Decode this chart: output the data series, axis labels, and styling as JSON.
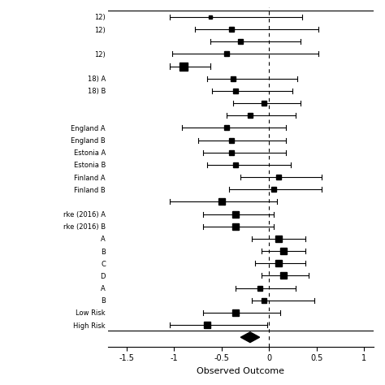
{
  "studies": [
    {
      "label": "12)",
      "mean": -0.62,
      "ci_low": -1.05,
      "ci_high": 0.35,
      "size": 3.5
    },
    {
      "label": "12)",
      "mean": -0.4,
      "ci_low": -0.78,
      "ci_high": 0.52,
      "size": 4.5
    },
    {
      "label": "",
      "mean": -0.3,
      "ci_low": -0.62,
      "ci_high": 0.33,
      "size": 4.5
    },
    {
      "label": "12)",
      "mean": -0.45,
      "ci_low": -1.02,
      "ci_high": 0.52,
      "size": 4.5
    },
    {
      "label": "",
      "mean": -0.9,
      "ci_low": -1.05,
      "ci_high": -0.62,
      "size": 8.5
    },
    {
      "label": "18) A",
      "mean": -0.38,
      "ci_low": -0.65,
      "ci_high": 0.3,
      "size": 5.5
    },
    {
      "label": "18) B",
      "mean": -0.35,
      "ci_low": -0.6,
      "ci_high": 0.25,
      "size": 5.5
    },
    {
      "label": "",
      "mean": -0.05,
      "ci_low": -0.38,
      "ci_high": 0.33,
      "size": 5.5
    },
    {
      "label": "",
      "mean": -0.2,
      "ci_low": -0.45,
      "ci_high": 0.28,
      "size": 5.0
    },
    {
      "label": "England A",
      "mean": -0.45,
      "ci_low": -0.92,
      "ci_high": 0.18,
      "size": 5.5
    },
    {
      "label": "England B",
      "mean": -0.4,
      "ci_low": -0.75,
      "ci_high": 0.18,
      "size": 5.5
    },
    {
      "label": "Estonia A",
      "mean": -0.4,
      "ci_low": -0.7,
      "ci_high": 0.18,
      "size": 5.5
    },
    {
      "label": "Estonia B",
      "mean": -0.35,
      "ci_low": -0.65,
      "ci_high": 0.23,
      "size": 5.5
    },
    {
      "label": "Finland A",
      "mean": 0.1,
      "ci_low": -0.3,
      "ci_high": 0.55,
      "size": 5.5
    },
    {
      "label": "Finland B",
      "mean": 0.05,
      "ci_low": -0.42,
      "ci_high": 0.55,
      "size": 5.5
    },
    {
      "label": "",
      "mean": -0.5,
      "ci_low": -1.05,
      "ci_high": 0.08,
      "size": 6.5
    },
    {
      "label": "rke (2016) A",
      "mean": -0.35,
      "ci_low": -0.7,
      "ci_high": 0.05,
      "size": 6.5
    },
    {
      "label": "rke (2016) B",
      "mean": -0.35,
      "ci_low": -0.7,
      "ci_high": 0.05,
      "size": 6.5
    },
    {
      "label": "A",
      "mean": 0.1,
      "ci_low": -0.18,
      "ci_high": 0.38,
      "size": 6.5
    },
    {
      "label": "B",
      "mean": 0.15,
      "ci_low": -0.08,
      "ci_high": 0.38,
      "size": 6.5
    },
    {
      "label": "C",
      "mean": 0.1,
      "ci_low": -0.15,
      "ci_high": 0.38,
      "size": 6.5
    },
    {
      "label": "D",
      "mean": 0.15,
      "ci_low": -0.08,
      "ci_high": 0.42,
      "size": 6.5
    },
    {
      "label": "A",
      "mean": -0.1,
      "ci_low": -0.35,
      "ci_high": 0.28,
      "size": 5.5
    },
    {
      "label": "B",
      "mean": -0.05,
      "ci_low": -0.18,
      "ci_high": 0.48,
      "size": 5.5
    },
    {
      "label": "Low Risk",
      "mean": -0.35,
      "ci_low": -0.7,
      "ci_high": 0.12,
      "size": 6.5
    },
    {
      "label": "High Risk",
      "mean": -0.65,
      "ci_low": -1.05,
      "ci_high": -0.02,
      "size": 6.5
    }
  ],
  "diamond": {
    "mean": -0.2,
    "ci_low": -0.3,
    "ci_high": -0.1
  },
  "xlim": [
    -1.7,
    1.1
  ],
  "xticks": [
    -1.5,
    -1.0,
    -0.5,
    0.0,
    0.5,
    1.0
  ],
  "xtick_labels": [
    "-1.5",
    "-1",
    "-0.5",
    "0",
    "0.5",
    "1"
  ],
  "xlabel": "Observed Outcome",
  "vline": 0.0,
  "marker_color": "black",
  "line_color": "black",
  "diamond_color": "black",
  "background_color": "white",
  "text_color": "black"
}
